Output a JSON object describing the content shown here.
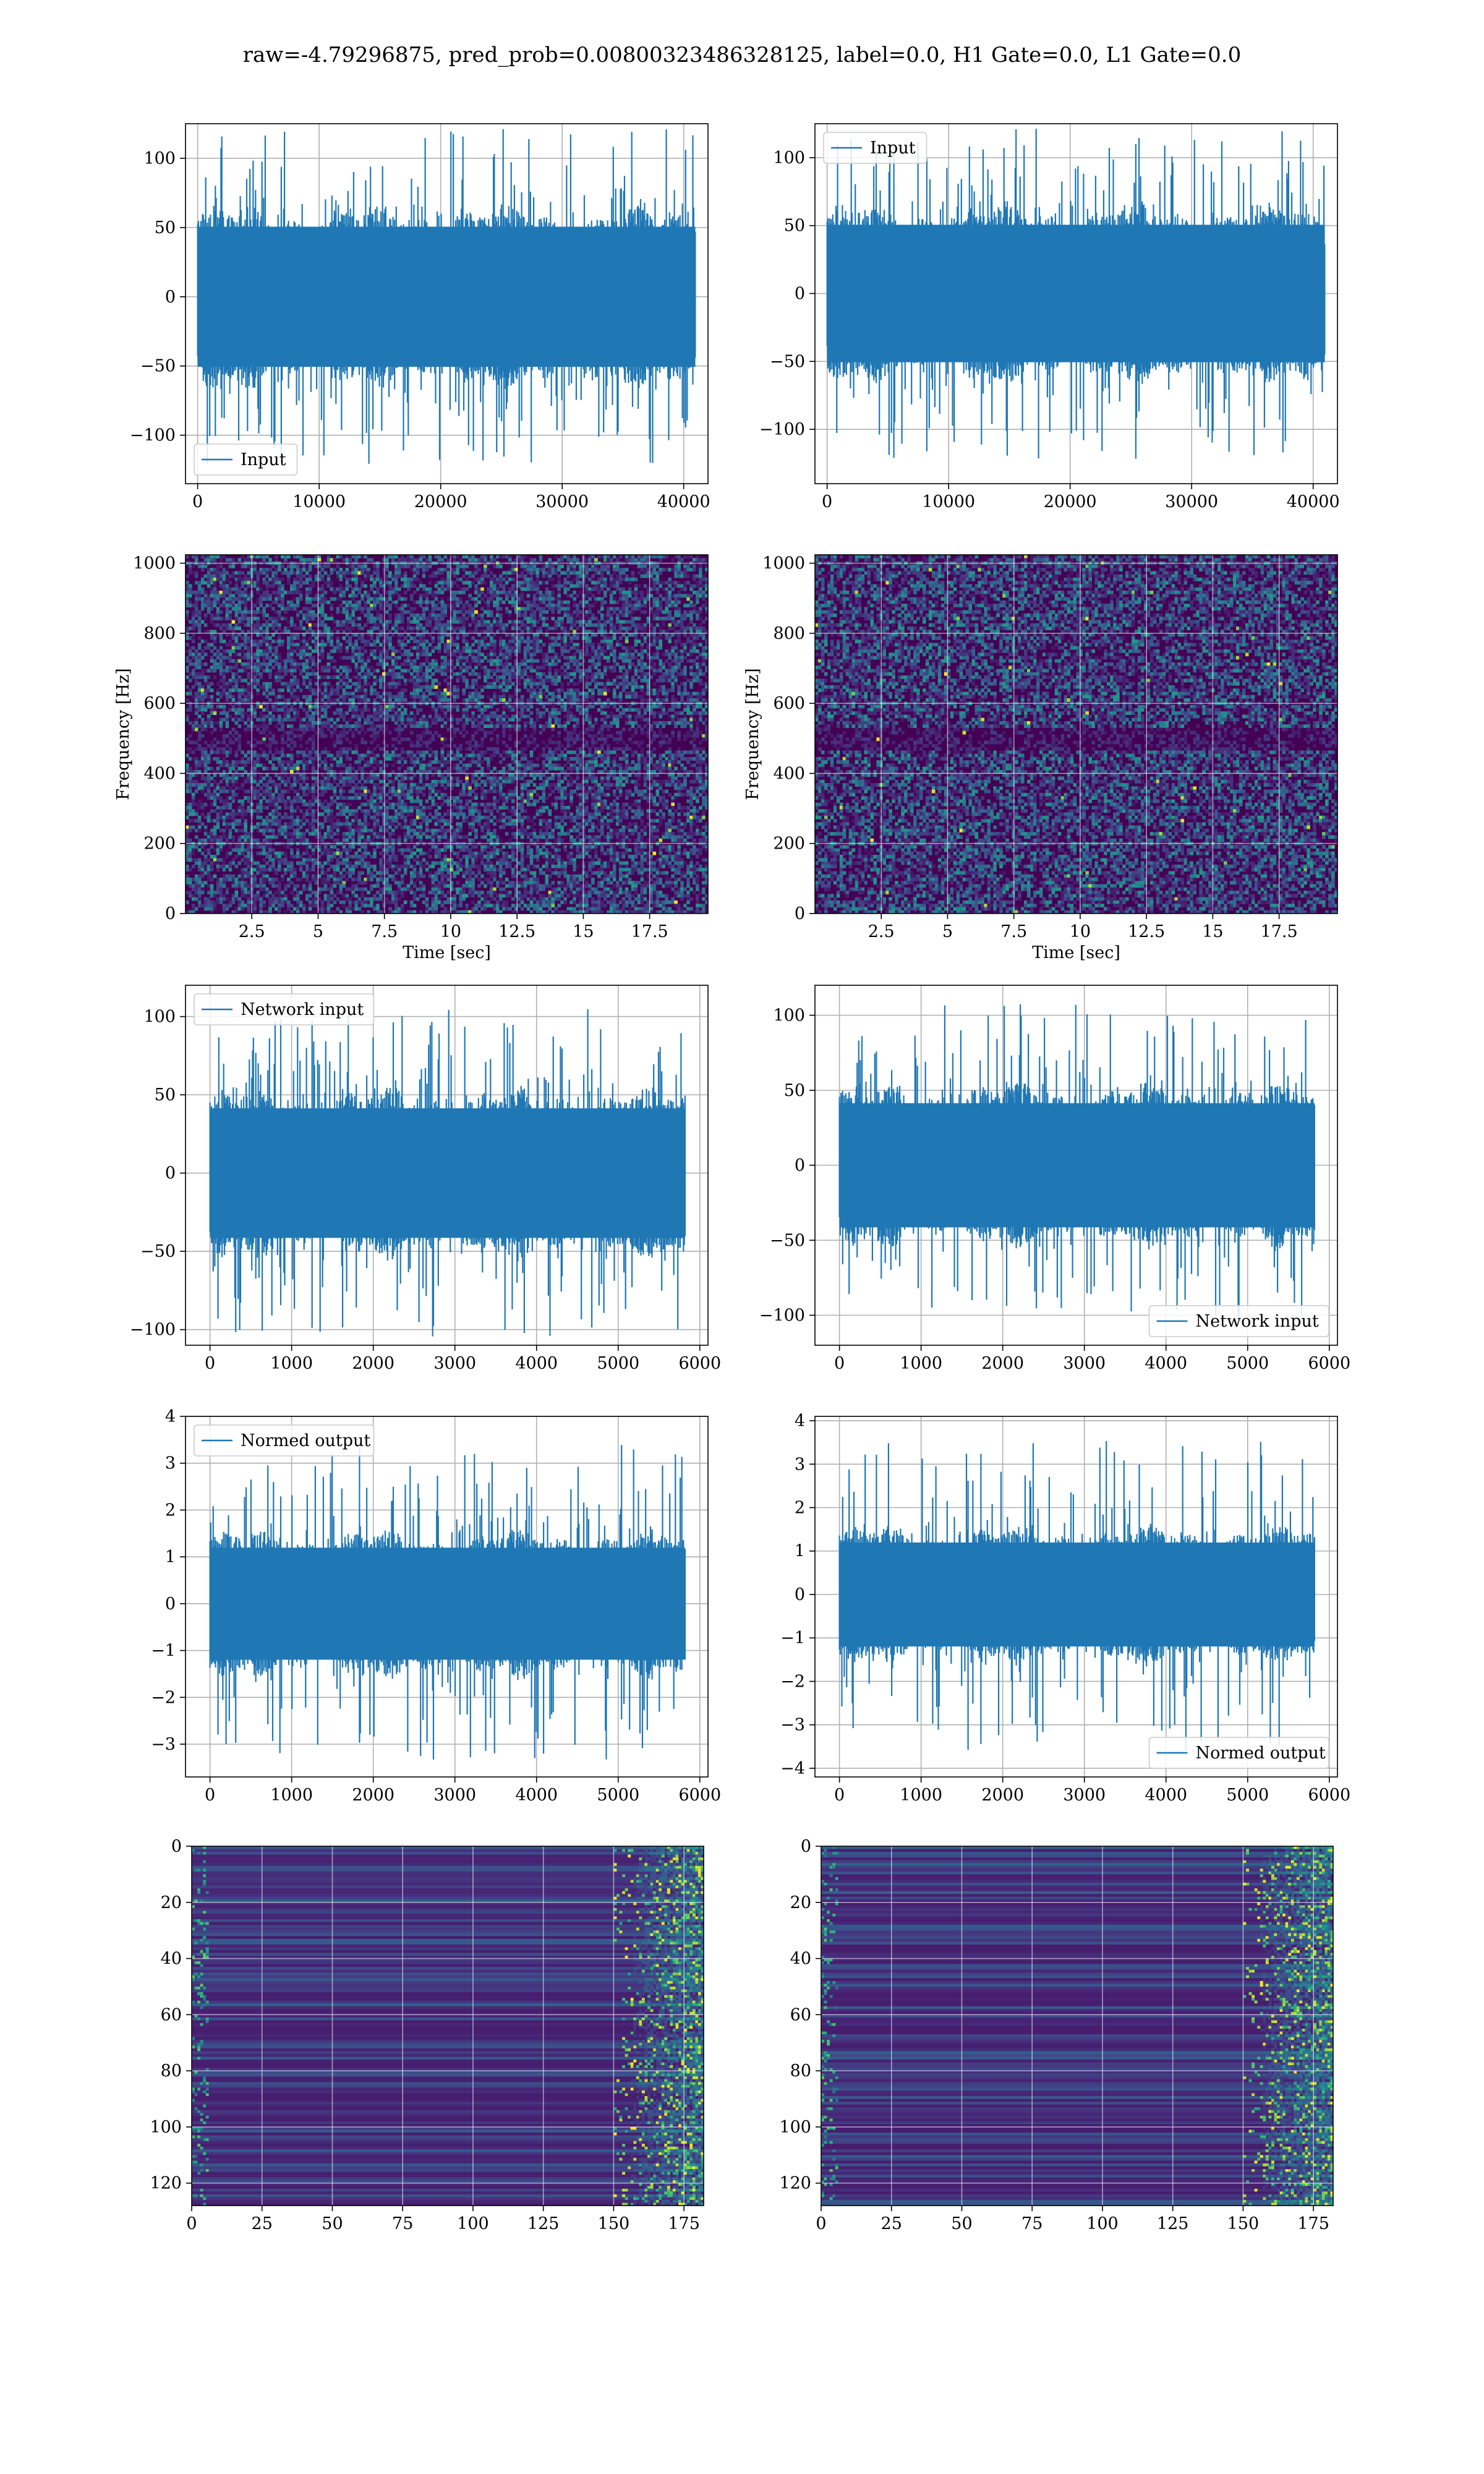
{
  "figure": {
    "suptitle": "raw=-4.79296875, pred_prob=0.00800323486328125, label=0.0, H1 Gate=0.0, L1 Gate=0.0"
  },
  "colors": {
    "line": "#1f77b4",
    "grid": "#b0b0b0",
    "viridis_low": "#440154",
    "viridis_high": "#fde725"
  },
  "chart_data": [
    {
      "id": "input-h1",
      "type": "line",
      "legend": "Input",
      "legend_loc": "lower left",
      "xlim": [
        -1000,
        42000
      ],
      "ylim": [
        -135,
        125
      ],
      "xticks": [
        0,
        10000,
        20000,
        30000,
        40000
      ],
      "yticks": [
        -100,
        -50,
        0,
        50,
        100
      ],
      "n_samples": 40960,
      "x_range": [
        0,
        40960
      ],
      "envelope": {
        "core": 55,
        "peak": 122
      },
      "grid": true
    },
    {
      "id": "input-l1",
      "type": "line",
      "legend": "Input",
      "legend_loc": "upper left",
      "xlim": [
        -1000,
        42000
      ],
      "ylim": [
        -140,
        125
      ],
      "xticks": [
        0,
        10000,
        20000,
        30000,
        40000
      ],
      "yticks": [
        -100,
        -50,
        0,
        50,
        100
      ],
      "n_samples": 40960,
      "x_range": [
        0,
        40960
      ],
      "envelope": {
        "core": 55,
        "peak": 122
      },
      "grid": true
    },
    {
      "id": "spec-h1",
      "type": "heatmap",
      "xlabel": "Time [sec]",
      "ylabel": "Frequency [Hz]",
      "xlim": [
        0,
        19.7
      ],
      "ylim": [
        0,
        1024
      ],
      "xticks": [
        2.5,
        5.0,
        7.5,
        10.0,
        12.5,
        15.0,
        17.5
      ],
      "yticks": [
        0,
        200,
        400,
        600,
        800,
        1000
      ],
      "colormap": "viridis",
      "grid": true
    },
    {
      "id": "spec-l1",
      "type": "heatmap",
      "xlabel": "Time [sec]",
      "ylabel": "Frequency [Hz]",
      "xlim": [
        0,
        19.7
      ],
      "ylim": [
        0,
        1024
      ],
      "xticks": [
        2.5,
        5.0,
        7.5,
        10.0,
        12.5,
        15.0,
        17.5
      ],
      "yticks": [
        0,
        200,
        400,
        600,
        800,
        1000
      ],
      "colormap": "viridis",
      "grid": true
    },
    {
      "id": "net-h1",
      "type": "line",
      "legend": "Network input",
      "legend_loc": "upper left",
      "xlim": [
        -300,
        6100
      ],
      "ylim": [
        -110,
        120
      ],
      "xticks": [
        0,
        1000,
        2000,
        3000,
        4000,
        5000,
        6000
      ],
      "yticks": [
        -100,
        -50,
        0,
        50,
        100
      ],
      "n_samples": 5820,
      "x_range": [
        0,
        5820
      ],
      "envelope": {
        "core": 45,
        "peak": 105
      },
      "grid": true
    },
    {
      "id": "net-l1",
      "type": "line",
      "legend": "Network input",
      "legend_loc": "lower right",
      "xlim": [
        -300,
        6100
      ],
      "ylim": [
        -120,
        120
      ],
      "xticks": [
        0,
        1000,
        2000,
        3000,
        4000,
        5000,
        6000
      ],
      "yticks": [
        -100,
        -50,
        0,
        50,
        100
      ],
      "n_samples": 5820,
      "x_range": [
        0,
        5820
      ],
      "envelope": {
        "core": 45,
        "peak": 108
      },
      "grid": true
    },
    {
      "id": "norm-h1",
      "type": "line",
      "legend": "Normed output",
      "legend_loc": "upper left",
      "xlim": [
        -300,
        6100
      ],
      "ylim": [
        -3.7,
        4.0
      ],
      "xticks": [
        0,
        1000,
        2000,
        3000,
        4000,
        5000,
        6000
      ],
      "yticks": [
        -3,
        -2,
        -1,
        0,
        1,
        2,
        3,
        4
      ],
      "n_samples": 5820,
      "x_range": [
        0,
        5820
      ],
      "envelope": {
        "core": 1.3,
        "peak": 3.4
      },
      "grid": true
    },
    {
      "id": "norm-l1",
      "type": "line",
      "legend": "Normed output",
      "legend_loc": "lower right",
      "xlim": [
        -300,
        6100
      ],
      "ylim": [
        -4.2,
        4.1
      ],
      "xticks": [
        0,
        1000,
        2000,
        3000,
        4000,
        5000,
        6000
      ],
      "yticks": [
        -4,
        -3,
        -2,
        -1,
        0,
        1,
        2,
        3,
        4
      ],
      "n_samples": 5820,
      "x_range": [
        0,
        5820
      ],
      "envelope": {
        "core": 1.3,
        "peak": 3.6
      },
      "grid": true
    },
    {
      "id": "feat-h1",
      "type": "heatmap",
      "xlim": [
        0,
        182
      ],
      "ylim": [
        128,
        0
      ],
      "xticks": [
        0,
        25,
        50,
        75,
        100,
        125,
        150,
        175
      ],
      "yticks": [
        0,
        20,
        40,
        60,
        80,
        100,
        120
      ],
      "colormap": "viridis",
      "grid": true
    },
    {
      "id": "feat-l1",
      "type": "heatmap",
      "xlim": [
        0,
        182
      ],
      "ylim": [
        128,
        0
      ],
      "xticks": [
        0,
        25,
        50,
        75,
        100,
        125,
        150,
        175
      ],
      "yticks": [
        0,
        20,
        40,
        60,
        80,
        100,
        120
      ],
      "colormap": "viridis",
      "grid": true
    }
  ]
}
